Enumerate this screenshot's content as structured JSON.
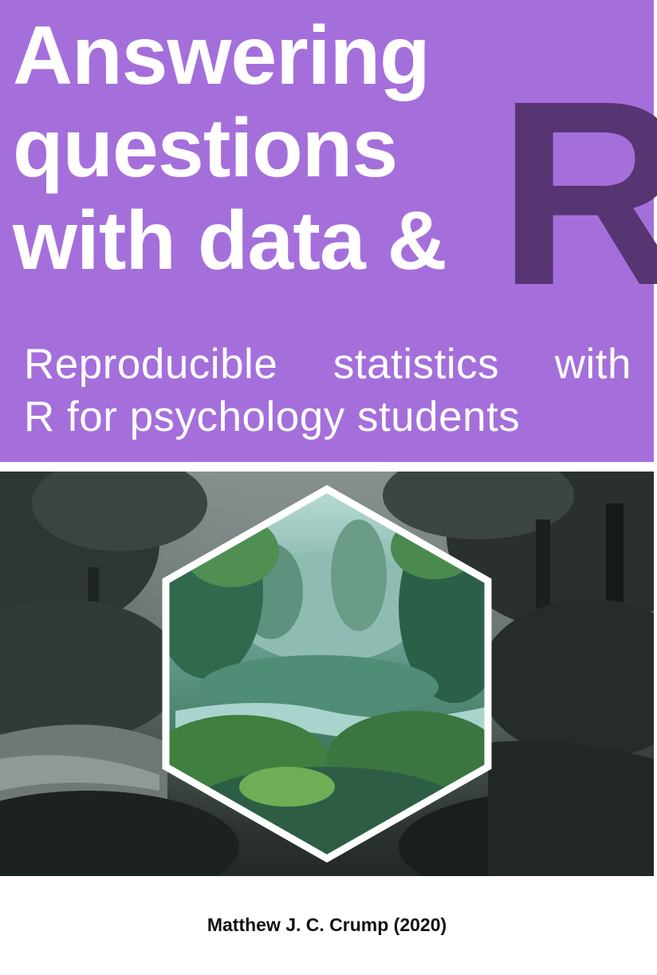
{
  "cover": {
    "title_lines": [
      "Answering",
      "questions",
      "with data &"
    ],
    "big_letter": "R",
    "subtitle_lines": [
      "Reproducible statistics with",
      "R for psychology students"
    ],
    "author": "Matthew J. C. Crump (2020)"
  },
  "colors": {
    "banner": "#a56fdb",
    "big_letter": "#573573",
    "title_text": "#ffffff",
    "hexagon_frame": "#ffffff"
  },
  "image": {
    "description_icon": "forest-landscape-with-hexagon-inset"
  }
}
